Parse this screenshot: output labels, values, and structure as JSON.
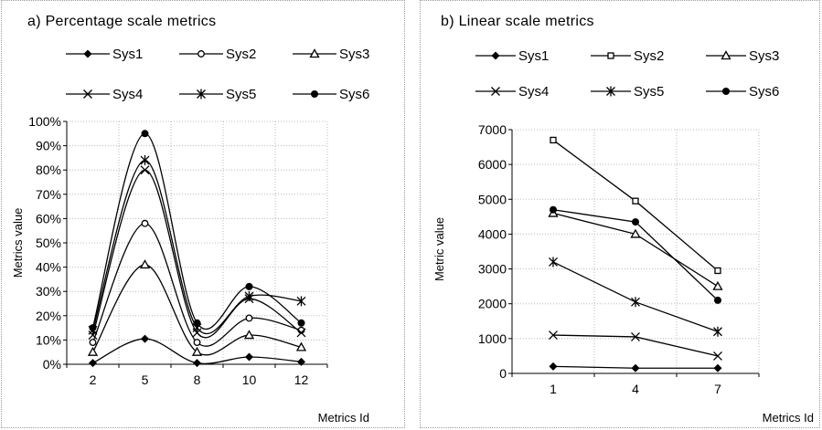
{
  "chart_data": [
    {
      "type": "line",
      "title": "a) Percentage scale metrics",
      "xlabel": "Metrics Id",
      "ylabel": "Metrics value",
      "categories": [
        "2",
        "5",
        "8",
        "10",
        "12"
      ],
      "ylim": [
        0,
        100
      ],
      "yticks": [
        "0%",
        "10%",
        "20%",
        "30%",
        "40%",
        "50%",
        "60%",
        "70%",
        "80%",
        "90%",
        "100%"
      ],
      "smooth": true,
      "grid": true,
      "legend_position": "top",
      "series": [
        {
          "name": "Sys1",
          "marker": "diamond",
          "values": [
            0.5,
            10.5,
            0.5,
            3,
            1
          ]
        },
        {
          "name": "Sys2",
          "marker": "circle-open",
          "values": [
            9,
            58,
            9,
            19,
            14
          ]
        },
        {
          "name": "Sys3",
          "marker": "triangle-open",
          "values": [
            5,
            41,
            5,
            12,
            7
          ]
        },
        {
          "name": "Sys4",
          "marker": "x",
          "values": [
            12,
            80,
            13,
            27,
            13
          ]
        },
        {
          "name": "Sys5",
          "marker": "star",
          "values": [
            14,
            84,
            15,
            28,
            26
          ]
        },
        {
          "name": "Sys6",
          "marker": "circle",
          "values": [
            15,
            95,
            17,
            32,
            17
          ]
        }
      ]
    },
    {
      "type": "line",
      "title": "b) Linear scale metrics",
      "xlabel": "Metrics Id",
      "ylabel": "Metric value",
      "categories": [
        "1",
        "4",
        "7"
      ],
      "ylim": [
        0,
        7000
      ],
      "yticks": [
        "0",
        "1000",
        "2000",
        "3000",
        "4000",
        "5000",
        "6000",
        "7000"
      ],
      "smooth": false,
      "grid": true,
      "legend_position": "top",
      "series": [
        {
          "name": "Sys1",
          "marker": "diamond",
          "values": [
            200,
            150,
            150
          ]
        },
        {
          "name": "Sys2",
          "marker": "square-open",
          "values": [
            6700,
            4950,
            2950
          ]
        },
        {
          "name": "Sys3",
          "marker": "triangle-open",
          "values": [
            4600,
            4000,
            2500
          ]
        },
        {
          "name": "Sys4",
          "marker": "x",
          "values": [
            1100,
            1050,
            500
          ]
        },
        {
          "name": "Sys5",
          "marker": "star",
          "values": [
            3200,
            2050,
            1200
          ]
        },
        {
          "name": "Sys6",
          "marker": "circle",
          "values": [
            4700,
            4350,
            2100
          ]
        }
      ]
    }
  ]
}
